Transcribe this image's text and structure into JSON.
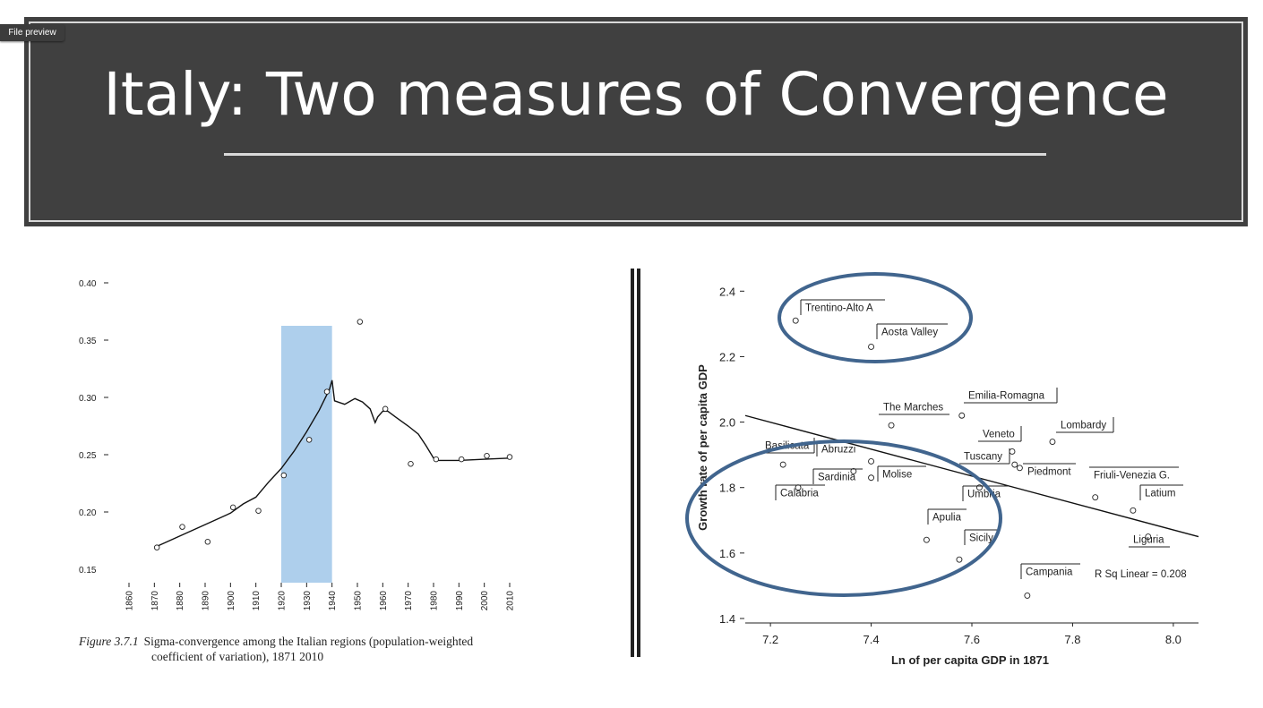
{
  "ui": {
    "file_preview_label": "File preview"
  },
  "slide": {
    "title": "Italy: Two measures of Convergence",
    "colors": {
      "banner": "#404040",
      "highlight": "#aecfec",
      "ellipse": "#41658e"
    }
  },
  "caption": {
    "figure_label": "Figure 3.7.1",
    "line1": "Sigma-convergence among the Italian regions (population-weighted",
    "line2": "coefficient of variation), 1871 2010"
  },
  "chart_data": [
    {
      "type": "scatter",
      "title": "",
      "xlabel": "",
      "ylabel": "",
      "xlim": [
        1860,
        2010
      ],
      "ylim": [
        0.15,
        0.4
      ],
      "x_ticks": [
        "1860",
        "1870",
        "1880",
        "1890",
        "1900",
        "1910",
        "1920",
        "1930",
        "1940",
        "1950",
        "1960",
        "1970",
        "1980",
        "1990",
        "2000",
        "2010"
      ],
      "y_ticks": [
        "0.15",
        "0.20",
        "0.25",
        "0.30",
        "0.35",
        "0.40"
      ],
      "points": [
        {
          "x": 1871,
          "y": 0.169
        },
        {
          "x": 1881,
          "y": 0.187
        },
        {
          "x": 1891,
          "y": 0.174
        },
        {
          "x": 1901,
          "y": 0.204
        },
        {
          "x": 1911,
          "y": 0.201
        },
        {
          "x": 1921,
          "y": 0.232
        },
        {
          "x": 1931,
          "y": 0.263
        },
        {
          "x": 1938,
          "y": 0.305
        },
        {
          "x": 1951,
          "y": 0.366
        },
        {
          "x": 1961,
          "y": 0.29
        },
        {
          "x": 1971,
          "y": 0.242
        },
        {
          "x": 1981,
          "y": 0.246
        },
        {
          "x": 1991,
          "y": 0.246
        },
        {
          "x": 2001,
          "y": 0.249
        },
        {
          "x": 2010,
          "y": 0.248
        }
      ],
      "trend_line": [
        {
          "x": 1871,
          "y": 0.17
        },
        {
          "x": 1880,
          "y": 0.179
        },
        {
          "x": 1890,
          "y": 0.189
        },
        {
          "x": 1900,
          "y": 0.199
        },
        {
          "x": 1905,
          "y": 0.207
        },
        {
          "x": 1910,
          "y": 0.213
        },
        {
          "x": 1915,
          "y": 0.226
        },
        {
          "x": 1920,
          "y": 0.238
        },
        {
          "x": 1925,
          "y": 0.253
        },
        {
          "x": 1930,
          "y": 0.27
        },
        {
          "x": 1935,
          "y": 0.289
        },
        {
          "x": 1939,
          "y": 0.307
        },
        {
          "x": 1940,
          "y": 0.315
        },
        {
          "x": 1941,
          "y": 0.297
        },
        {
          "x": 1945,
          "y": 0.294
        },
        {
          "x": 1949,
          "y": 0.299
        },
        {
          "x": 1952,
          "y": 0.296
        },
        {
          "x": 1955,
          "y": 0.29
        },
        {
          "x": 1957,
          "y": 0.278
        },
        {
          "x": 1958,
          "y": 0.283
        },
        {
          "x": 1960,
          "y": 0.288
        },
        {
          "x": 1962,
          "y": 0.288
        },
        {
          "x": 1965,
          "y": 0.283
        },
        {
          "x": 1970,
          "y": 0.275
        },
        {
          "x": 1974,
          "y": 0.268
        },
        {
          "x": 1977,
          "y": 0.258
        },
        {
          "x": 1980,
          "y": 0.247
        },
        {
          "x": 1982,
          "y": 0.245
        },
        {
          "x": 1990,
          "y": 0.245
        },
        {
          "x": 2000,
          "y": 0.246
        },
        {
          "x": 2010,
          "y": 0.247
        }
      ],
      "highlight_band": {
        "x_from": 1920,
        "x_to": 1940
      }
    },
    {
      "type": "scatter",
      "title": "",
      "xlabel": "Ln of per capita GDP in 1871",
      "ylabel": "Growth rate of per capita GDP",
      "xlim": [
        7.15,
        8.05
      ],
      "ylim": [
        1.4,
        2.45
      ],
      "x_ticks": [
        "7.2",
        "7.4",
        "7.6",
        "7.8",
        "8.0"
      ],
      "y_ticks": [
        "1.4",
        "1.6",
        "1.8",
        "2.0",
        "2.2",
        "2.4"
      ],
      "regression_label": "R Sq Linear = 0.208",
      "regression_line": [
        {
          "x": 7.15,
          "y": 2.02
        },
        {
          "x": 8.05,
          "y": 1.65
        }
      ],
      "points": [
        {
          "label": "Trentino-Alto A",
          "x": 7.25,
          "y": 2.31
        },
        {
          "label": "Aosta Valley",
          "x": 7.4,
          "y": 2.23
        },
        {
          "label": "The Marches",
          "x": 7.44,
          "y": 1.99
        },
        {
          "label": "Emilia-Romagna",
          "x": 7.58,
          "y": 2.02
        },
        {
          "label": "Lombardy",
          "x": 7.76,
          "y": 1.94
        },
        {
          "label": "Veneto",
          "x": 7.68,
          "y": 1.91
        },
        {
          "label": "Tuscany",
          "x": 7.685,
          "y": 1.87
        },
        {
          "label": "Piedmont",
          "x": 7.695,
          "y": 1.86
        },
        {
          "label": "Basilicata",
          "x": 7.225,
          "y": 1.87
        },
        {
          "label": "Abruzzi",
          "x": 7.4,
          "y": 1.88
        },
        {
          "label": "Sardinia",
          "x": 7.365,
          "y": 1.85
        },
        {
          "label": "Molise",
          "x": 7.4,
          "y": 1.83
        },
        {
          "label": "Calabria",
          "x": 7.255,
          "y": 1.8
        },
        {
          "label": "Umbria",
          "x": 7.615,
          "y": 1.8
        },
        {
          "label": "Friuli-Venezia G.",
          "x": 7.845,
          "y": 1.77
        },
        {
          "label": "Latium",
          "x": 7.92,
          "y": 1.73
        },
        {
          "label": "Apulia",
          "x": 7.51,
          "y": 1.64
        },
        {
          "label": "Sicily",
          "x": 7.575,
          "y": 1.58
        },
        {
          "label": "Liguria",
          "x": 7.95,
          "y": 1.65
        },
        {
          "label": "Campania",
          "x": 7.71,
          "y": 1.47
        }
      ]
    }
  ]
}
